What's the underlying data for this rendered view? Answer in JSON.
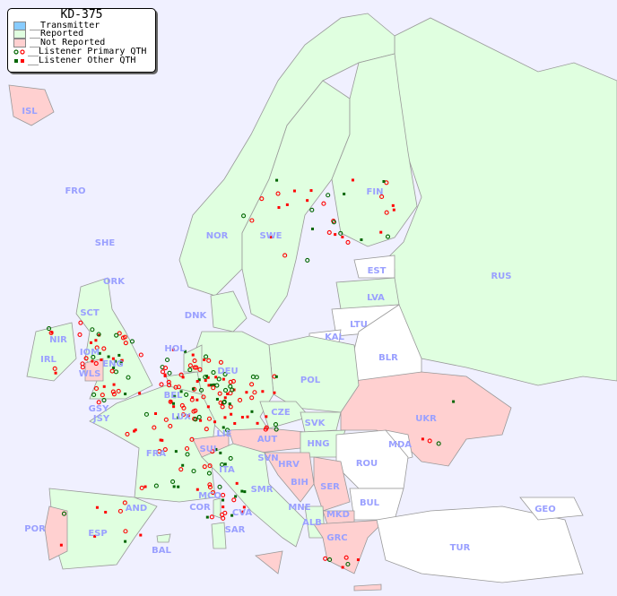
{
  "legend": {
    "title": "KD-375",
    "items": [
      {
        "label": "__Transmitter",
        "color": "#88ccff"
      },
      {
        "label": "__Reported",
        "color": "#e0ffe0"
      },
      {
        "label": "__Not Reported",
        "color": "#ffd0d0"
      },
      {
        "label": "__Listener Primary QTH",
        "colors": [
          "#006600",
          "#ff0000"
        ],
        "marker": "circle"
      },
      {
        "label": "__Listener Other QTH",
        "colors": [
          "#006600",
          "#ff0000"
        ],
        "marker": "square"
      }
    ]
  },
  "colors": {
    "sea": "#f0f0ff",
    "reported": "#e0ffe0",
    "not_reported": "#ffd0d0",
    "no_data": "#ffffff",
    "label": "#9aa0ff"
  },
  "countries": [
    "ISL",
    "FRO",
    "SHE",
    "ORK",
    "NOR",
    "SWE",
    "FIN",
    "EST",
    "LVA",
    "LTU",
    "KAL",
    "RUS",
    "DNK",
    "HOL",
    "IRL",
    "NIR",
    "SCT",
    "IOM",
    "WLS",
    "ENG",
    "GSY",
    "JSY",
    "BEL",
    "LUX",
    "DEU",
    "POL",
    "BLR",
    "UKR",
    "CZE",
    "SVK",
    "FRA",
    "SUI",
    "LIE",
    "AUT",
    "HNG",
    "MDA",
    "ROU",
    "SVN",
    "HRV",
    "BIH",
    "SER",
    "ITA",
    "MCO",
    "COR",
    "SMR",
    "CVA",
    "MNE",
    "ALB",
    "MKD",
    "BUL",
    "AND",
    "POR",
    "ESP",
    "BAL",
    "SAR",
    "GRC",
    "TUR",
    "GEO"
  ]
}
